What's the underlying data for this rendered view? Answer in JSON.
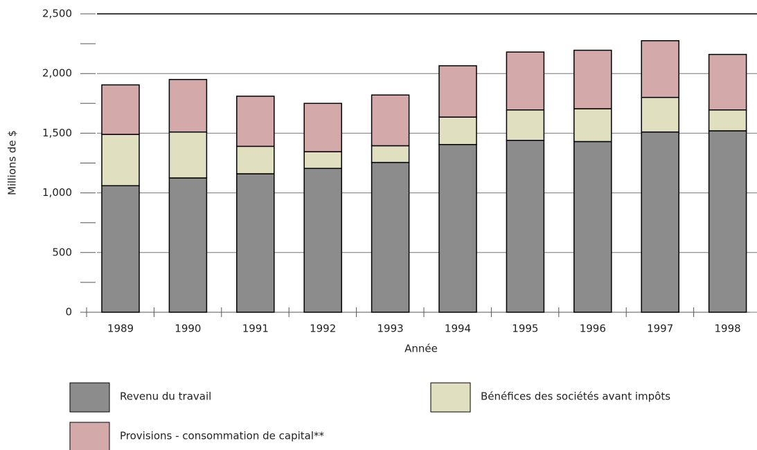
{
  "chart_data": {
    "type": "stacked_bar",
    "x_label": "Année",
    "y_label": "Millions de $",
    "categories": [
      "1989",
      "1990",
      "1991",
      "1992",
      "1993",
      "1994",
      "1995",
      "1996",
      "1997",
      "1998"
    ],
    "series": [
      {
        "name": "Revenu du travail",
        "color": "#8c8c8c",
        "values": [
          1060,
          1125,
          1160,
          1205,
          1255,
          1405,
          1440,
          1430,
          1510,
          1520
        ]
      },
      {
        "name": "Bénéfices des sociétés avant impôts",
        "color": "#e0dfc0",
        "values": [
          430,
          385,
          230,
          140,
          140,
          230,
          255,
          275,
          290,
          175
        ]
      },
      {
        "name": "Provisions - consommation de capital**",
        "color": "#d4a9a9",
        "values": [
          415,
          440,
          420,
          405,
          425,
          430,
          485,
          490,
          475,
          465
        ]
      }
    ],
    "ylim": [
      0,
      2500
    ],
    "yticks": [
      0,
      500,
      {
        "value": 1000,
        "label": "1,000"
      },
      {
        "value": 1500,
        "label": "1,500"
      },
      {
        "value": 2000,
        "label": "2,000"
      },
      {
        "value": 2500,
        "label": "2,500"
      }
    ],
    "minor_yticks": [
      250,
      750,
      1250,
      1750,
      2250
    ],
    "grid": true
  }
}
